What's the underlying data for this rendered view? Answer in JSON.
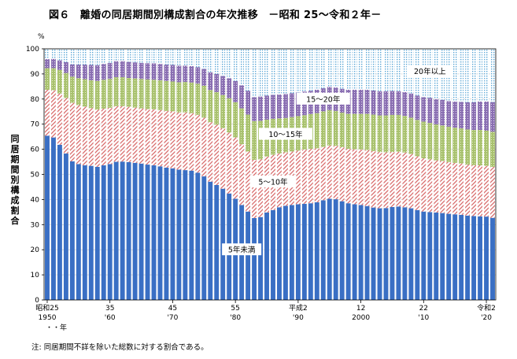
{
  "title": "図６　離婚の同居期間別構成割合の年次推移　－昭和 25～令和２年－",
  "note": "注: 同居期間不詳を除いた総数に対する割合である。",
  "chart_data": {
    "type": "bar",
    "stacked": true,
    "ylabel": "同居期間別構成割合",
    "yunit": "%",
    "ylim": [
      0,
      100
    ],
    "yticks": [
      0,
      10,
      20,
      30,
      40,
      50,
      60,
      70,
      80,
      90,
      100
    ],
    "year_suffix": "・・年",
    "x_ticks": [
      {
        "index": 0,
        "label1": "昭和25",
        "label2": "1950"
      },
      {
        "index": 10,
        "label1": "35",
        "label2": "'60"
      },
      {
        "index": 20,
        "label1": "45",
        "label2": "'70"
      },
      {
        "index": 30,
        "label1": "55",
        "label2": "'80"
      },
      {
        "index": 40,
        "label1": "平成2",
        "label2": "'90"
      },
      {
        "index": 50,
        "label1": "12",
        "label2": "2000"
      },
      {
        "index": 60,
        "label1": "22",
        "label2": "'10"
      },
      {
        "index": 70,
        "label1": "令和2",
        "label2": "'20"
      }
    ],
    "series": [
      {
        "name": "5年未満",
        "color": "#3a6fc4",
        "pattern": "solid",
        "label_at": [
          31,
          20
        ],
        "values": [
          65.4,
          64.7,
          61.8,
          58.3,
          55.2,
          54.1,
          53.6,
          53.4,
          53.0,
          53.6,
          54.1,
          55.0,
          55.1,
          54.9,
          54.6,
          54.3,
          53.9,
          53.6,
          53.2,
          52.7,
          52.4,
          51.9,
          51.7,
          51.5,
          50.7,
          49.2,
          47.1,
          45.8,
          44.3,
          42.4,
          40.3,
          37.8,
          35.2,
          32.6,
          33.0,
          34.8,
          35.8,
          36.9,
          37.5,
          37.8,
          38.1,
          38.3,
          38.5,
          38.9,
          39.7,
          40.3,
          40.1,
          39.3,
          38.5,
          38.1,
          37.8,
          37.4,
          36.8,
          36.5,
          36.6,
          37.0,
          37.2,
          36.9,
          36.5,
          35.8,
          35.2,
          35.0,
          34.8,
          34.6,
          34.3,
          34.1,
          33.9,
          33.6,
          33.4,
          33.3,
          33.2,
          32.7
        ]
      },
      {
        "name": "5～10年",
        "color": "#d86a6a",
        "pattern": "hatch",
        "label_at": [
          36,
          47
        ],
        "values": [
          18.3,
          18.8,
          20.4,
          22.1,
          23.3,
          23.5,
          23.4,
          23.0,
          22.8,
          22.6,
          22.4,
          22.2,
          22.1,
          22.0,
          22.0,
          22.0,
          22.1,
          22.3,
          22.4,
          22.6,
          22.7,
          22.8,
          23.0,
          22.9,
          23.0,
          23.4,
          23.7,
          24.0,
          24.1,
          24.3,
          24.4,
          24.2,
          23.9,
          23.2,
          23.0,
          22.3,
          22.0,
          21.5,
          21.3,
          21.3,
          21.4,
          21.6,
          21.7,
          21.5,
          21.2,
          21.2,
          21.3,
          21.5,
          21.7,
          21.9,
          22.1,
          22.3,
          22.5,
          22.4,
          22.2,
          21.9,
          21.8,
          21.8,
          21.6,
          21.4,
          21.2,
          21.0,
          20.8,
          20.7,
          20.6,
          20.5,
          20.4,
          20.3,
          20.3,
          20.3,
          20.2,
          20.3
        ]
      },
      {
        "name": "10～15年",
        "color": "#b8cc84",
        "pattern": "dots",
        "label_at": [
          38,
          66
        ],
        "values": [
          8.6,
          8.8,
          9.4,
          10.0,
          10.4,
          10.7,
          10.9,
          11.1,
          11.4,
          11.5,
          11.5,
          11.5,
          11.5,
          11.5,
          11.6,
          11.7,
          11.8,
          11.8,
          11.9,
          11.9,
          11.9,
          12.0,
          12.1,
          12.2,
          12.4,
          12.7,
          12.8,
          13.0,
          13.2,
          13.6,
          14.0,
          14.3,
          14.7,
          15.4,
          15.3,
          14.7,
          14.3,
          13.9,
          13.7,
          13.7,
          13.7,
          13.7,
          13.8,
          14.0,
          14.2,
          14.1,
          13.9,
          13.8,
          13.9,
          14.1,
          14.2,
          14.4,
          14.5,
          14.6,
          14.7,
          14.8,
          14.7,
          14.6,
          14.5,
          14.5,
          14.6,
          14.5,
          14.3,
          14.2,
          14.1,
          14.0,
          14.0,
          14.0,
          14.0,
          14.1,
          14.0,
          14.0
        ]
      },
      {
        "name": "15～20年",
        "color": "#9d84c0",
        "pattern": "dots",
        "label_at": [
          44,
          80
        ],
        "values": [
          3.6,
          3.7,
          3.8,
          4.3,
          4.9,
          5.4,
          5.8,
          6.1,
          6.3,
          6.3,
          6.4,
          6.4,
          6.4,
          6.4,
          6.4,
          6.4,
          6.5,
          6.5,
          6.5,
          6.5,
          6.6,
          6.6,
          6.5,
          6.5,
          6.6,
          6.7,
          7.0,
          7.2,
          7.6,
          8.0,
          8.5,
          9.2,
          9.5,
          9.6,
          9.7,
          9.6,
          9.6,
          9.5,
          9.5,
          9.5,
          9.4,
          9.4,
          9.3,
          9.3,
          9.2,
          9.2,
          9.3,
          9.5,
          9.6,
          9.6,
          9.6,
          9.6,
          9.6,
          9.6,
          9.6,
          9.5,
          9.4,
          9.5,
          9.6,
          9.7,
          9.8,
          10.0,
          10.1,
          10.2,
          10.2,
          10.4,
          10.6,
          10.8,
          11.0,
          11.3,
          11.6,
          11.8
        ]
      },
      {
        "name": "20年以上",
        "color": "#8fc3e0",
        "pattern": "dots",
        "label_at": [
          61,
          91
        ],
        "values": [
          4.1,
          4.0,
          4.6,
          5.3,
          6.2,
          6.3,
          6.3,
          6.4,
          6.5,
          6.0,
          5.6,
          4.9,
          4.9,
          5.2,
          5.4,
          5.6,
          5.7,
          5.8,
          6.0,
          6.3,
          6.4,
          6.7,
          6.7,
          6.9,
          7.3,
          8.0,
          9.4,
          10.0,
          10.8,
          11.7,
          12.8,
          14.5,
          16.7,
          19.2,
          19.0,
          18.6,
          18.3,
          18.2,
          18.0,
          17.7,
          17.4,
          17.0,
          16.7,
          16.3,
          15.7,
          15.2,
          15.4,
          15.9,
          16.3,
          16.3,
          16.3,
          16.3,
          16.6,
          16.9,
          16.9,
          16.8,
          16.9,
          17.2,
          17.8,
          18.6,
          19.2,
          19.5,
          20.0,
          20.3,
          20.8,
          21.0,
          21.1,
          21.3,
          21.3,
          21.0,
          21.0,
          21.2
        ]
      }
    ]
  }
}
